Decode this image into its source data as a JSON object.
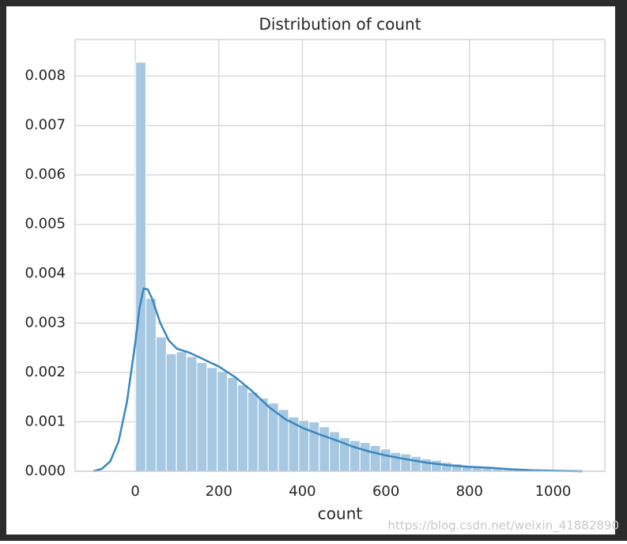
{
  "chart_data": {
    "type": "histogram",
    "title": "Distribution of count",
    "x_label": "count",
    "bins": [
      1,
      25.4,
      49.8,
      74.2,
      98.6,
      123,
      147.4,
      171.8,
      196.2,
      220.6,
      245,
      269.4,
      293.8,
      318.2,
      342.6,
      367,
      391.4,
      415.8,
      440.2,
      464.6,
      489,
      513.4,
      537.8,
      562.2,
      586.6,
      611,
      635.4,
      659.8,
      684.2,
      708.6,
      733,
      757.4,
      781.8,
      806.2,
      830.6,
      855,
      879.4,
      903.8,
      928.2,
      952.6,
      977
    ],
    "values": [
      0.00828,
      0.0035,
      0.00272,
      0.00238,
      0.00242,
      0.00232,
      0.0022,
      0.0021,
      0.00202,
      0.0019,
      0.00175,
      0.0016,
      0.00148,
      0.00138,
      0.00125,
      0.0011,
      0.00103,
      0.001,
      0.0009,
      0.0008,
      0.00068,
      0.00062,
      0.00058,
      0.00052,
      0.00045,
      0.00038,
      0.00035,
      0.0003,
      0.00025,
      0.00022,
      0.00018,
      0.00015,
      0.00012,
      0.0001,
      9e-05,
      8e-05,
      6e-05,
      4e-05,
      2e-05,
      1e-05
    ],
    "color": "#a7c8e2",
    "kde": {
      "color": "#3a87c0",
      "x": [
        -100,
        -80,
        -60,
        -40,
        -20,
        0,
        10,
        20,
        30,
        40,
        60,
        80,
        100,
        130,
        160,
        200,
        240,
        280,
        320,
        360,
        400,
        440,
        480,
        520,
        560,
        600,
        650,
        700,
        750,
        800,
        850,
        900,
        950,
        1000,
        1070
      ],
      "values": [
        0,
        5e-05,
        0.0002,
        0.0006,
        0.0014,
        0.0026,
        0.0033,
        0.0037,
        0.00368,
        0.0035,
        0.003,
        0.00265,
        0.00248,
        0.0024,
        0.00228,
        0.00212,
        0.0019,
        0.00162,
        0.0013,
        0.00105,
        0.00088,
        0.00075,
        0.00063,
        0.0005,
        0.0004,
        0.00032,
        0.00024,
        0.00017,
        0.00012,
        9e-05,
        7e-05,
        4e-05,
        2e-05,
        1e-05,
        0
      ]
    },
    "xlim": [
      -144,
      1124
    ],
    "xticks": [
      0,
      200,
      400,
      600,
      800,
      1000
    ],
    "ylim": [
      0,
      0.00874
    ],
    "yticks": [
      {
        "value": 0,
        "label": "0.000"
      },
      {
        "value": 0.001,
        "label": "0.001"
      },
      {
        "value": 0.002,
        "label": "0.002"
      },
      {
        "value": 0.003,
        "label": "0.003"
      },
      {
        "value": 0.004,
        "label": "0.004"
      },
      {
        "value": 0.005,
        "label": "0.005"
      },
      {
        "value": 0.006,
        "label": "0.006"
      },
      {
        "value": 0.007,
        "label": "0.007"
      },
      {
        "value": 0.008,
        "label": "0.008"
      }
    ],
    "grid": true,
    "watermark": "https://blog.csdn.net/weixin_41882890"
  }
}
